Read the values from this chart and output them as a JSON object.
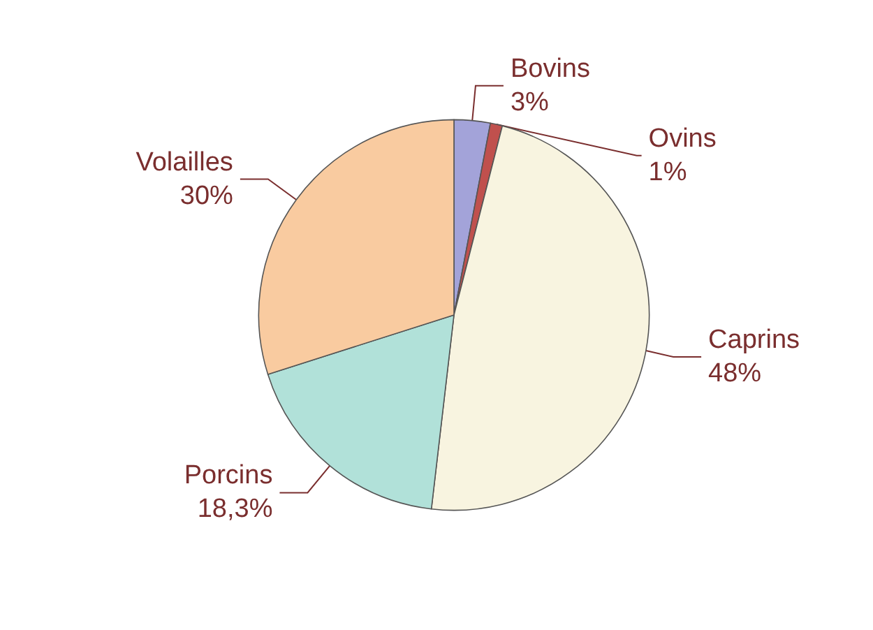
{
  "chart_data": {
    "type": "pie",
    "categories": [
      "Bovins",
      "Ovins",
      "Caprins",
      "Porcins",
      "Volailles"
    ],
    "values": [
      3,
      1,
      48,
      18.3,
      30
    ],
    "value_labels": [
      "3%",
      "1%",
      "48%",
      "18,3%",
      "30%"
    ],
    "colors": [
      "#a3a3d9",
      "#c0504d",
      "#f8f4e0",
      "#b1e1d9",
      "#f9cba0"
    ],
    "legend": false
  }
}
